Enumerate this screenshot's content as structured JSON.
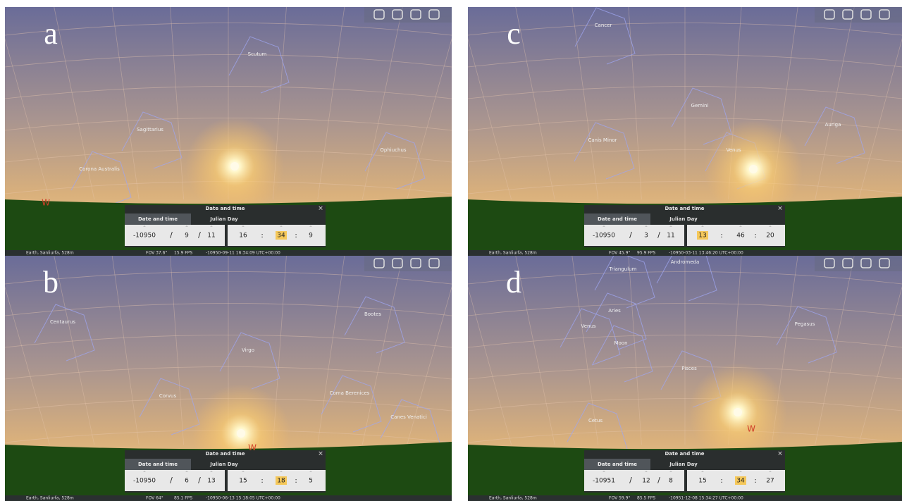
{
  "dialog": {
    "title": "Date and time",
    "tabs": [
      "Date and time",
      "Julian Day"
    ]
  },
  "date_separator": "/",
  "time_separator": ":",
  "location": "Earth, Sanliurfa, 528m",
  "panels": [
    {
      "label": "a",
      "constellations": [
        "Scutum",
        "Sagittarius",
        "Ophiuchus",
        "Corona Australis"
      ],
      "cardinal": "W",
      "date": [
        "-10950",
        "9",
        "11"
      ],
      "time": [
        "16",
        "34",
        "9"
      ],
      "highlight": "time.1",
      "fov": "FOV 37.6°",
      "fps": "15.9 FPS",
      "datetime": "-10950-09-11  16:34:09 UTC+00:00"
    },
    {
      "label": "c",
      "constellations": [
        "Cancer",
        "Gemini",
        "Canis Minor",
        "Auriga",
        "Venus"
      ],
      "date": [
        "-10950",
        "3",
        "11"
      ],
      "time": [
        "13",
        "46",
        "20"
      ],
      "highlight": "time.0",
      "fov": "FOV 45.9°",
      "fps": "95.9 FPS",
      "datetime": "-10950-03-11  13:46:20 UTC+00:00"
    },
    {
      "label": "b",
      "constellations": [
        "Centaurus",
        "Bootes",
        "Virgo",
        "Corvus",
        "Coma Berenices",
        "Canes Venatici"
      ],
      "cardinal": "W",
      "date": [
        "-10950",
        "6",
        "13"
      ],
      "time": [
        "15",
        "18",
        "5"
      ],
      "highlight": "time.1",
      "fov": "FOV 64°",
      "fps": "85.1 FPS",
      "datetime": "-10950-06-13  15:18:05 UTC+00:00"
    },
    {
      "label": "d",
      "constellations": [
        "Triangulum",
        "Andromeda",
        "Aries",
        "Venus",
        "Moon",
        "Pegasus",
        "Pisces",
        "Cetus"
      ],
      "cardinal": "W",
      "date": [
        "-10951",
        "12",
        "8"
      ],
      "time": [
        "15",
        "34",
        "27"
      ],
      "highlight": "time.1",
      "fov": "FOV 59.9°",
      "fps": "85.5 FPS",
      "datetime": "-10951-12-08  15:34:27 UTC+00:00"
    }
  ]
}
